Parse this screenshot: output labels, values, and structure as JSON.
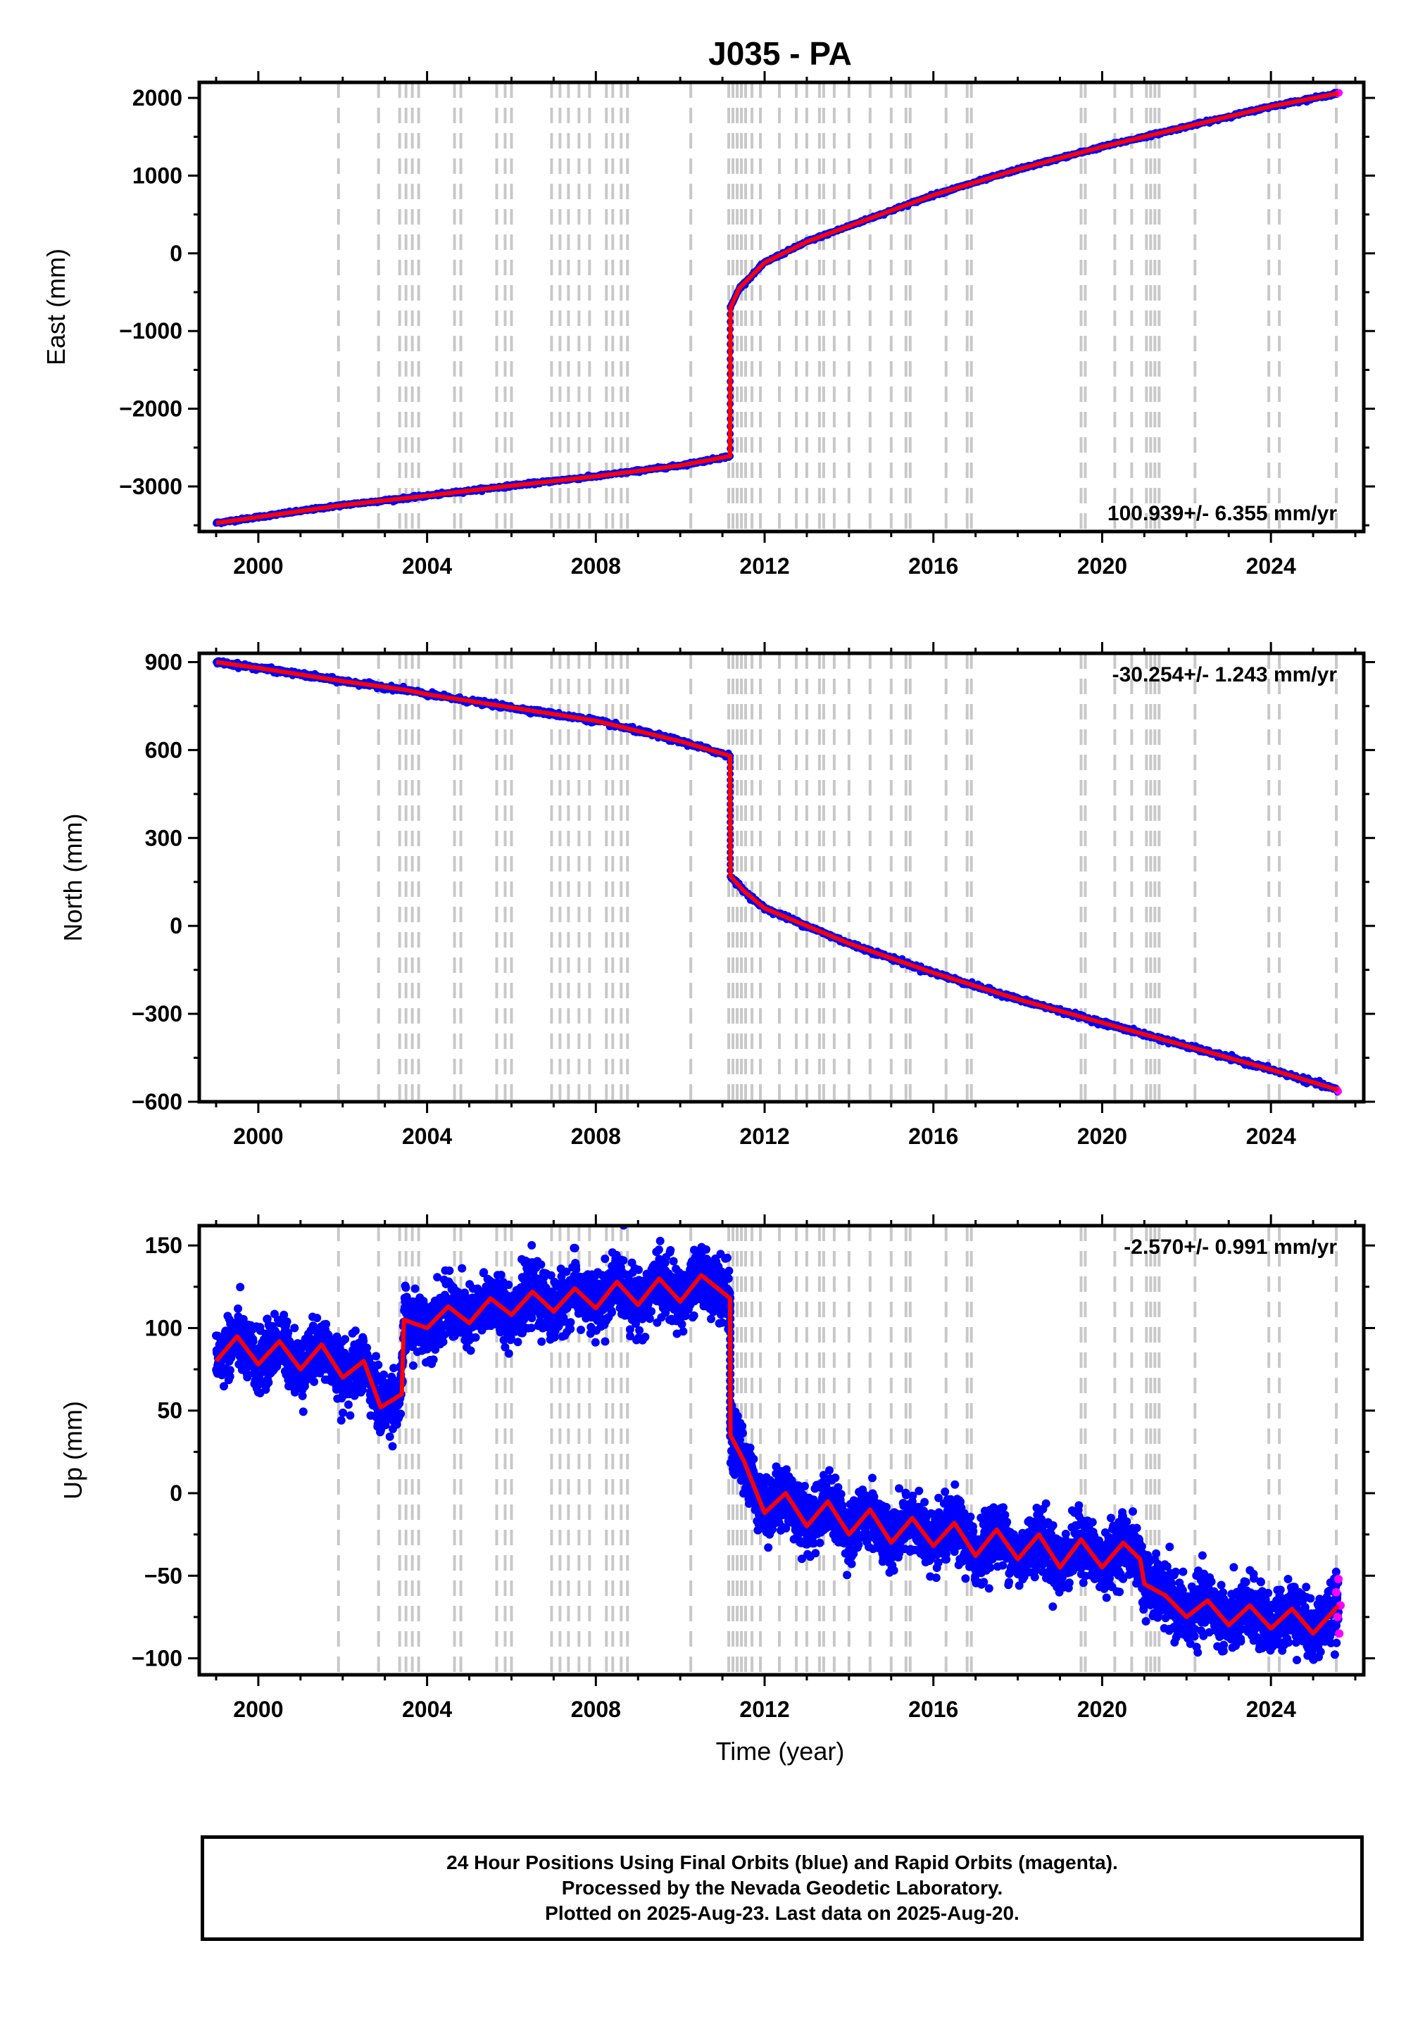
{
  "title": "J035 - PA",
  "x_axis_label": "Time (year)",
  "colors": {
    "final": "#0000ff",
    "rapid": "#ff00ff",
    "model": "#ff0000",
    "events": "#c8c8c8"
  },
  "footer": {
    "line1": "24 Hour Positions Using Final Orbits (blue) and Rapid Orbits (magenta).",
    "line2": "Processed by the Nevada Geodetic Laboratory.",
    "line3": "Plotted on 2025-Aug-23. Last data on 2025-Aug-20."
  },
  "chart_data": [
    {
      "type": "scatter",
      "ylabel": "East (mm)",
      "rate": "100.939+/- 6.355 mm/yr",
      "xlim": [
        1998.6,
        2026.2
      ],
      "ylim": [
        -3580,
        2200
      ],
      "xticks": [
        2000,
        2004,
        2008,
        2012,
        2016,
        2020,
        2024
      ],
      "yticks": [
        -3000,
        -2000,
        -1000,
        0,
        1000,
        2000
      ],
      "ytick_labels": [
        "−3000",
        "−2000",
        "−1000",
        "0",
        "1000",
        "2000"
      ],
      "series": [
        {
          "role": "model",
          "x": [
            1999.0,
            2002.0,
            2004.0,
            2006.0,
            2008.0,
            2010.0,
            2011.18,
            2011.19,
            2011.4,
            2012.0,
            2013.0,
            2014.0,
            2016.0,
            2018.0,
            2020.0,
            2022.0,
            2024.0,
            2025.6
          ],
          "y": [
            -3470,
            -3240,
            -3120,
            -2990,
            -2870,
            -2730,
            -2610,
            -700,
            -450,
            -120,
            150,
            350,
            750,
            1080,
            1370,
            1630,
            1890,
            2060
          ]
        }
      ],
      "rapid_points": {
        "x": [
          2025.58,
          2025.6,
          2025.62
        ],
        "y": [
          2055,
          2062,
          2066
        ]
      }
    },
    {
      "type": "scatter",
      "ylabel": "North (mm)",
      "rate": "-30.254+/- 1.243 mm/yr",
      "xlim": [
        1998.6,
        2026.2
      ],
      "ylim": [
        -600,
        930
      ],
      "xticks": [
        2000,
        2004,
        2008,
        2012,
        2016,
        2020,
        2024
      ],
      "yticks": [
        -600,
        -300,
        0,
        300,
        600,
        900
      ],
      "ytick_labels": [
        "−600",
        "−300",
        "0",
        "300",
        "600",
        "900"
      ],
      "series": [
        {
          "role": "model",
          "x": [
            1999.0,
            2000.0,
            2002.0,
            2003.5,
            2004.0,
            2006.0,
            2008.0,
            2010.0,
            2011.18,
            2011.19,
            2011.5,
            2012.0,
            2013.0,
            2014.0,
            2016.0,
            2018.0,
            2020.0,
            2022.0,
            2024.0,
            2025.6
          ],
          "y": [
            900,
            880,
            835,
            805,
            790,
            745,
            700,
            630,
            580,
            170,
            120,
            60,
            0,
            -60,
            -160,
            -250,
            -330,
            -410,
            -490,
            -560
          ]
        }
      ],
      "rapid_points": {
        "x": [
          2025.58,
          2025.6
        ],
        "y": [
          -560,
          -565
        ]
      }
    },
    {
      "type": "scatter",
      "ylabel": "Up (mm)",
      "rate": "-2.570+/- 0.991 mm/yr",
      "xlim": [
        1998.6,
        2026.2
      ],
      "ylim": [
        -110,
        162
      ],
      "xticks": [
        2000,
        2004,
        2008,
        2012,
        2016,
        2020,
        2024
      ],
      "yticks": [
        -100,
        -50,
        0,
        50,
        100,
        150
      ],
      "ytick_labels": [
        "−100",
        "−50",
        "0",
        "50",
        "100",
        "150"
      ],
      "series": [
        {
          "role": "model",
          "x": [
            1999.0,
            1999.5,
            2000.0,
            2000.5,
            2001.0,
            2001.5,
            2002.0,
            2002.5,
            2002.9,
            2003.4,
            2003.45,
            2004.0,
            2004.5,
            2005.0,
            2005.5,
            2006.0,
            2006.5,
            2007.0,
            2007.5,
            2008.0,
            2008.5,
            2009.0,
            2009.5,
            2010.0,
            2010.5,
            2011.18,
            2011.19,
            2011.5,
            2012.0,
            2012.5,
            2013.0,
            2013.5,
            2014.0,
            2014.5,
            2015.0,
            2015.5,
            2016.0,
            2016.5,
            2017.0,
            2017.5,
            2018.0,
            2018.5,
            2019.0,
            2019.5,
            2020.0,
            2020.5,
            2020.9,
            2021.0,
            2021.5,
            2022.0,
            2022.5,
            2023.0,
            2023.5,
            2024.0,
            2024.5,
            2025.0,
            2025.6
          ],
          "y": [
            80,
            95,
            78,
            92,
            75,
            90,
            70,
            80,
            52,
            60,
            105,
            100,
            113,
            103,
            118,
            108,
            122,
            110,
            124,
            112,
            128,
            114,
            130,
            116,
            132,
            118,
            35,
            20,
            -12,
            0,
            -20,
            -5,
            -25,
            -10,
            -30,
            -15,
            -32,
            -18,
            -38,
            -22,
            -40,
            -25,
            -45,
            -28,
            -45,
            -30,
            -40,
            -55,
            -62,
            -75,
            -65,
            -80,
            -68,
            -82,
            -70,
            -85,
            -68
          ]
        }
      ],
      "rapid_points": {
        "x": [
          2025.55,
          2025.58,
          2025.6,
          2025.62,
          2025.65
        ],
        "y": [
          -60,
          -75,
          -52,
          -85,
          -68
        ]
      }
    }
  ],
  "event_lines": [
    2001.9,
    2002.85,
    2003.35,
    2003.5,
    2003.65,
    2003.8,
    2004.65,
    2004.8,
    2005.65,
    2005.85,
    2006.0,
    2006.95,
    2007.15,
    2007.35,
    2007.6,
    2007.85,
    2008.25,
    2008.4,
    2008.6,
    2008.75,
    2010.25,
    2011.15,
    2011.25,
    2011.35,
    2011.45,
    2011.55,
    2011.7,
    2011.9,
    2012.35,
    2012.75,
    2013.0,
    2013.3,
    2013.4,
    2013.65,
    2014.0,
    2014.5,
    2015.0,
    2015.35,
    2015.45,
    2016.3,
    2016.8,
    2016.9,
    2019.5,
    2019.6,
    2020.3,
    2020.7,
    2021.05,
    2021.15,
    2021.25,
    2021.35,
    2022.2,
    2023.95,
    2024.2,
    2025.55
  ]
}
